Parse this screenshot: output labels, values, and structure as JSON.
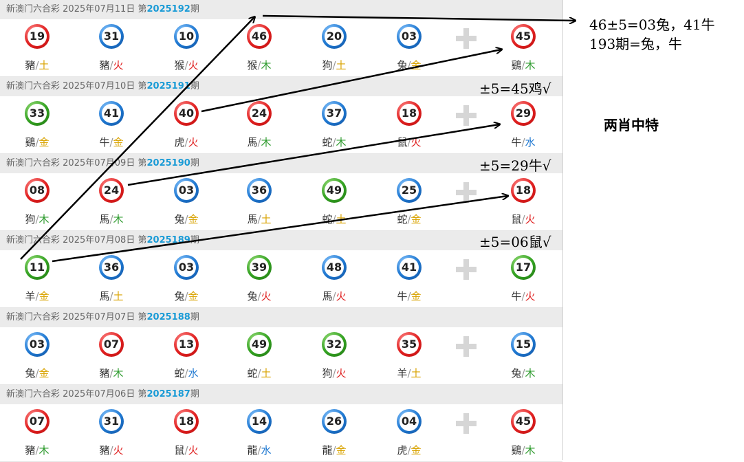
{
  "draws": [
    {
      "lottery": "新澳门六合彩",
      "date": "2025年07月11日",
      "issue_prefix": "第",
      "issue": "2025192",
      "issue_suffix": "期",
      "balls": [
        {
          "n": "19",
          "color": "red",
          "zodiac": "豬",
          "element": "土"
        },
        {
          "n": "31",
          "color": "blue",
          "zodiac": "豬",
          "element": "火"
        },
        {
          "n": "10",
          "color": "blue",
          "zodiac": "猴",
          "element": "火"
        },
        {
          "n": "46",
          "color": "red",
          "zodiac": "猴",
          "element": "木"
        },
        {
          "n": "20",
          "color": "blue",
          "zodiac": "狗",
          "element": "土"
        },
        {
          "n": "03",
          "color": "blue",
          "zodiac": "兔",
          "element": "金"
        }
      ],
      "special": {
        "n": "45",
        "color": "red",
        "zodiac": "鷄",
        "element": "木"
      }
    },
    {
      "lottery": "新澳门六合彩",
      "date": "2025年07月10日",
      "issue_prefix": "第",
      "issue": "2025191",
      "issue_suffix": "期",
      "balls": [
        {
          "n": "33",
          "color": "green",
          "zodiac": "鷄",
          "element": "金"
        },
        {
          "n": "41",
          "color": "blue",
          "zodiac": "牛",
          "element": "金"
        },
        {
          "n": "40",
          "color": "red",
          "zodiac": "虎",
          "element": "火"
        },
        {
          "n": "24",
          "color": "red",
          "zodiac": "馬",
          "element": "木"
        },
        {
          "n": "37",
          "color": "blue",
          "zodiac": "蛇",
          "element": "木"
        },
        {
          "n": "18",
          "color": "red",
          "zodiac": "鼠",
          "element": "火"
        }
      ],
      "special": {
        "n": "29",
        "color": "red",
        "zodiac": "牛",
        "element": "水"
      }
    },
    {
      "lottery": "新澳门六合彩",
      "date": "2025年07月09日",
      "issue_prefix": "第",
      "issue": "2025190",
      "issue_suffix": "期",
      "balls": [
        {
          "n": "08",
          "color": "red",
          "zodiac": "狗",
          "element": "木"
        },
        {
          "n": "24",
          "color": "red",
          "zodiac": "馬",
          "element": "木"
        },
        {
          "n": "03",
          "color": "blue",
          "zodiac": "兔",
          "element": "金"
        },
        {
          "n": "36",
          "color": "blue",
          "zodiac": "馬",
          "element": "土"
        },
        {
          "n": "49",
          "color": "green",
          "zodiac": "蛇",
          "element": "土"
        },
        {
          "n": "25",
          "color": "blue",
          "zodiac": "蛇",
          "element": "金"
        }
      ],
      "special": {
        "n": "18",
        "color": "red",
        "zodiac": "鼠",
        "element": "火"
      }
    },
    {
      "lottery": "新澳门六合彩",
      "date": "2025年07月08日",
      "issue_prefix": "第",
      "issue": "2025189",
      "issue_suffix": "期",
      "balls": [
        {
          "n": "11",
          "color": "green",
          "zodiac": "羊",
          "element": "金"
        },
        {
          "n": "36",
          "color": "blue",
          "zodiac": "馬",
          "element": "土"
        },
        {
          "n": "03",
          "color": "blue",
          "zodiac": "兔",
          "element": "金"
        },
        {
          "n": "39",
          "color": "green",
          "zodiac": "兔",
          "element": "火"
        },
        {
          "n": "48",
          "color": "blue",
          "zodiac": "馬",
          "element": "火"
        },
        {
          "n": "41",
          "color": "blue",
          "zodiac": "牛",
          "element": "金"
        }
      ],
      "special": {
        "n": "17",
        "color": "green",
        "zodiac": "牛",
        "element": "火"
      }
    },
    {
      "lottery": "新澳门六合彩",
      "date": "2025年07月07日",
      "issue_prefix": "第",
      "issue": "2025188",
      "issue_suffix": "期",
      "balls": [
        {
          "n": "03",
          "color": "blue",
          "zodiac": "兔",
          "element": "金"
        },
        {
          "n": "07",
          "color": "red",
          "zodiac": "豬",
          "element": "木"
        },
        {
          "n": "13",
          "color": "red",
          "zodiac": "蛇",
          "element": "水"
        },
        {
          "n": "49",
          "color": "green",
          "zodiac": "蛇",
          "element": "土"
        },
        {
          "n": "32",
          "color": "green",
          "zodiac": "狗",
          "element": "火"
        },
        {
          "n": "35",
          "color": "red",
          "zodiac": "羊",
          "element": "土"
        }
      ],
      "special": {
        "n": "15",
        "color": "blue",
        "zodiac": "兔",
        "element": "木"
      }
    },
    {
      "lottery": "新澳门六合彩",
      "date": "2025年07月06日",
      "issue_prefix": "第",
      "issue": "2025187",
      "issue_suffix": "期",
      "balls": [
        {
          "n": "07",
          "color": "red",
          "zodiac": "豬",
          "element": "木"
        },
        {
          "n": "31",
          "color": "blue",
          "zodiac": "豬",
          "element": "火"
        },
        {
          "n": "18",
          "color": "red",
          "zodiac": "鼠",
          "element": "火"
        },
        {
          "n": "14",
          "color": "blue",
          "zodiac": "龍",
          "element": "水"
        },
        {
          "n": "26",
          "color": "blue",
          "zodiac": "龍",
          "element": "金"
        },
        {
          "n": "04",
          "color": "blue",
          "zodiac": "虎",
          "element": "金"
        }
      ],
      "special": {
        "n": "45",
        "color": "red",
        "zodiac": "鷄",
        "element": "木"
      }
    }
  ],
  "annotations": {
    "line1": "46±5=03兔，41牛",
    "line2": "193期=兔，牛",
    "note_191": "±5=45鸡√",
    "note_190": "±5=29牛√",
    "note_189": "±5=06鼠√",
    "summary": "两肖中特"
  },
  "colors": {
    "red_ball": "#e02020",
    "blue_ball": "#1f78d1",
    "green_ball": "#33a121",
    "issue_number": "#1a9bd6"
  }
}
